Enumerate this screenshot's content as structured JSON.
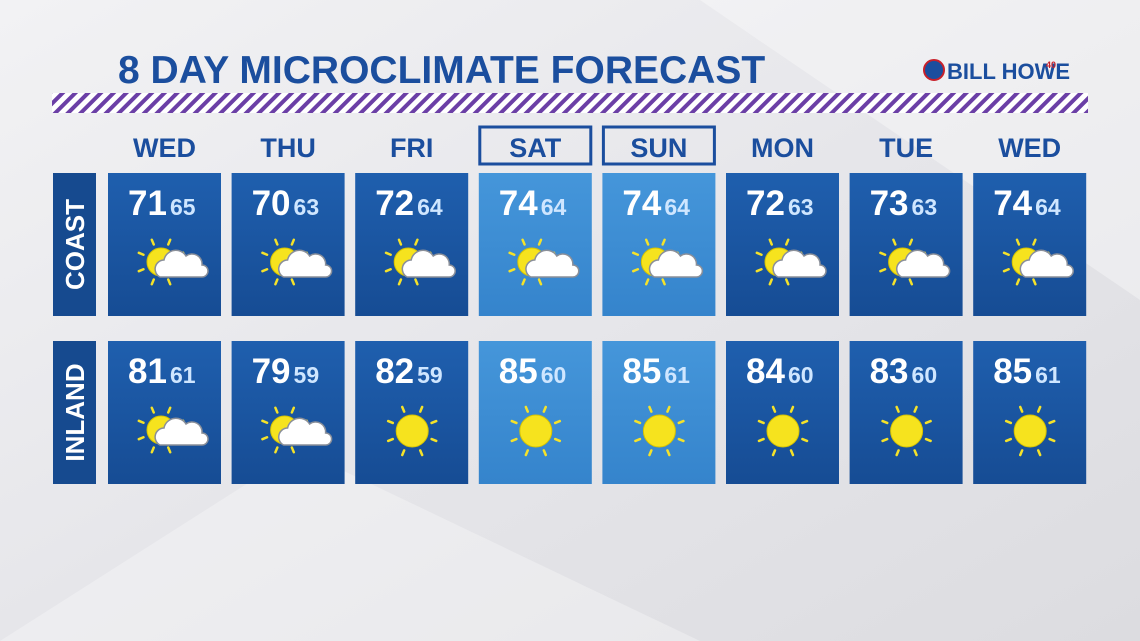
{
  "title": "8 DAY MICROCLIMATE FORECAST",
  "sponsor": {
    "name": "BILL HOWE",
    "badge": "40"
  },
  "days": [
    "WED",
    "THU",
    "FRI",
    "SAT",
    "SUN",
    "MON",
    "TUE",
    "WED"
  ],
  "regions": [
    {
      "name": "COAST",
      "highs": [
        71,
        70,
        72,
        74,
        74,
        72,
        73,
        74
      ],
      "lows": [
        65,
        63,
        64,
        64,
        64,
        63,
        63,
        64
      ]
    },
    {
      "name": "INLAND",
      "highs": [
        81,
        79,
        82,
        85,
        85,
        84,
        83,
        85
      ],
      "lows": [
        61,
        59,
        59,
        60,
        61,
        60,
        60,
        61
      ]
    }
  ]
}
